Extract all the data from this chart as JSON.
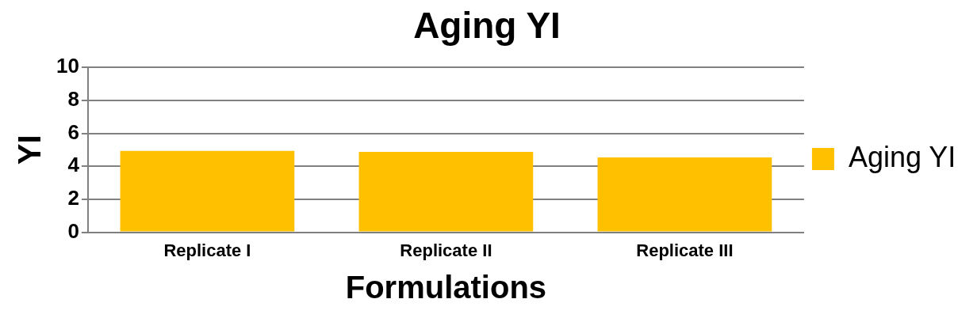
{
  "chart_data": {
    "type": "bar",
    "title": "Aging YI",
    "xlabel": "Formulations",
    "ylabel": "YI",
    "categories": [
      "Replicate I",
      "Replicate II",
      "Replicate III"
    ],
    "series": [
      {
        "name": "Aging YI",
        "color": "#ffc000",
        "values": [
          4.93,
          4.87,
          4.54
        ]
      }
    ],
    "ylim": [
      0,
      10
    ],
    "yticks": [
      0,
      2,
      4,
      6,
      8,
      10
    ],
    "grid": "y",
    "legend": "right"
  }
}
